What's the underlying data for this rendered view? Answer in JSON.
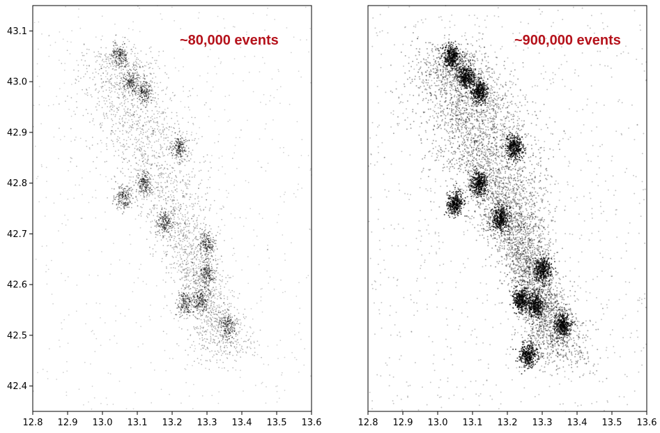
{
  "chart_data": [
    {
      "type": "scatter",
      "panel": "left",
      "annotation": "~80,000 events",
      "annotation_color": "#b5121b",
      "marker_color": "#000000",
      "xlim": [
        12.8,
        13.6
      ],
      "ylim": [
        42.35,
        43.15
      ],
      "x_ticks": [
        "12.8",
        "12.9",
        "13.0",
        "13.1",
        "13.2",
        "13.3",
        "13.4",
        "13.5",
        "13.6"
      ],
      "y_ticks": [
        "42.4",
        "42.5",
        "42.6",
        "42.7",
        "42.8",
        "42.9",
        "43.0",
        "43.1"
      ],
      "show_y_ticks": true,
      "grid": false,
      "density": "sparse",
      "clusters": [
        {
          "x": 13.05,
          "y": 43.05
        },
        {
          "x": 13.08,
          "y": 43.0
        },
        {
          "x": 13.12,
          "y": 42.98
        },
        {
          "x": 13.22,
          "y": 42.87
        },
        {
          "x": 13.12,
          "y": 42.8
        },
        {
          "x": 13.18,
          "y": 42.72
        },
        {
          "x": 13.06,
          "y": 42.77
        },
        {
          "x": 13.3,
          "y": 42.62
        },
        {
          "x": 13.28,
          "y": 42.57
        },
        {
          "x": 13.24,
          "y": 42.56
        },
        {
          "x": 13.36,
          "y": 42.52
        },
        {
          "x": 13.3,
          "y": 42.68
        }
      ]
    },
    {
      "type": "scatter",
      "panel": "right",
      "annotation": "~900,000 events",
      "annotation_color": "#b5121b",
      "marker_color": "#000000",
      "xlim": [
        12.8,
        13.6
      ],
      "ylim": [
        42.35,
        43.15
      ],
      "x_ticks": [
        "12.8",
        "12.9",
        "13.0",
        "13.1",
        "13.2",
        "13.3",
        "13.4",
        "13.5",
        "13.6"
      ],
      "y_ticks": [],
      "show_y_ticks": false,
      "grid": false,
      "density": "dense",
      "clusters": [
        {
          "x": 13.04,
          "y": 43.05
        },
        {
          "x": 13.08,
          "y": 43.01
        },
        {
          "x": 13.12,
          "y": 42.98
        },
        {
          "x": 13.22,
          "y": 42.87
        },
        {
          "x": 13.12,
          "y": 42.8
        },
        {
          "x": 13.18,
          "y": 42.73
        },
        {
          "x": 13.05,
          "y": 42.76
        },
        {
          "x": 13.3,
          "y": 42.63
        },
        {
          "x": 13.28,
          "y": 42.56
        },
        {
          "x": 13.24,
          "y": 42.57
        },
        {
          "x": 13.36,
          "y": 42.52
        },
        {
          "x": 13.26,
          "y": 42.46
        }
      ]
    }
  ]
}
